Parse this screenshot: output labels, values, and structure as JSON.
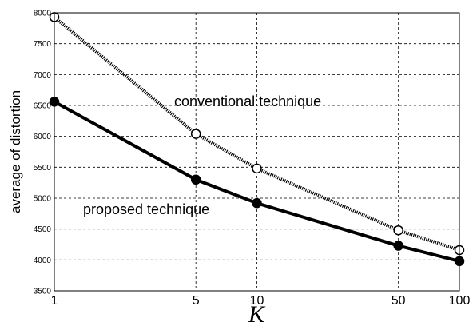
{
  "chart_data": {
    "type": "line",
    "title": "",
    "xlabel": "K",
    "ylabel": "average of distortion",
    "x_scale": "log",
    "x_ticks": [
      1,
      5,
      10,
      50,
      100
    ],
    "y_ticks": [
      3500,
      4000,
      4500,
      5000,
      5500,
      6000,
      6500,
      7000,
      7500,
      8000
    ],
    "xlim": [
      1,
      100
    ],
    "ylim": [
      3500,
      8000
    ],
    "grid": true,
    "series": [
      {
        "name": "conventional technique",
        "x": [
          1,
          5,
          10,
          50,
          100
        ],
        "values": [
          7930,
          6040,
          5480,
          4480,
          4160
        ],
        "marker": "open-circle",
        "line_style": "dotted-thick"
      },
      {
        "name": "proposed technique",
        "x": [
          1,
          5,
          10,
          50,
          100
        ],
        "values": [
          6560,
          5300,
          4920,
          4230,
          3980
        ],
        "marker": "filled-circle",
        "line_style": "solid-thick"
      }
    ]
  }
}
